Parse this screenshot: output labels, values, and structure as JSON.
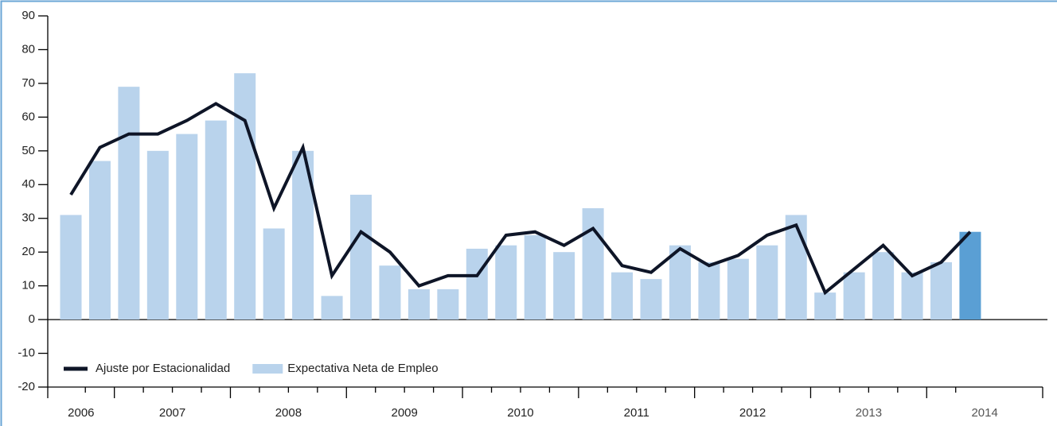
{
  "chart_data": {
    "type": "bar_line",
    "categories": [
      null,
      null,
      null,
      null,
      null,
      null,
      null,
      null,
      null,
      null,
      null,
      null,
      null,
      null,
      null,
      null,
      null,
      null,
      null,
      null,
      null,
      null,
      null,
      null,
      null,
      null,
      null,
      null,
      null,
      null,
      null,
      null
    ],
    "x_groups": [
      {
        "label": "2006",
        "count": 2
      },
      {
        "label": "2007",
        "count": 4
      },
      {
        "label": "2008",
        "count": 4
      },
      {
        "label": "2009",
        "count": 4
      },
      {
        "label": "2010",
        "count": 4
      },
      {
        "label": "2011",
        "count": 4
      },
      {
        "label": "2012",
        "count": 4
      },
      {
        "label": "2013",
        "count": 4
      },
      {
        "label": "2014",
        "count": 2
      }
    ],
    "series": [
      {
        "name": "Ajuste por Estacionalidad",
        "kind": "line",
        "color": "#0e1527",
        "values": [
          37,
          51,
          55,
          55,
          59,
          64,
          59,
          33,
          51,
          13,
          26,
          20,
          10,
          13,
          13,
          25,
          26,
          22,
          27,
          16,
          14,
          21,
          16,
          19,
          25,
          28,
          8,
          15,
          22,
          13,
          17,
          26
        ]
      },
      {
        "name": "Expectativa Neta de Empleo",
        "kind": "bar",
        "color": "#b9d3ec",
        "colors": [
          "#b9d3ec",
          "#b9d3ec",
          "#b9d3ec",
          "#b9d3ec",
          "#b9d3ec",
          "#b9d3ec",
          "#b9d3ec",
          "#b9d3ec",
          "#b9d3ec",
          "#b9d3ec",
          "#b9d3ec",
          "#b9d3ec",
          "#b9d3ec",
          "#b9d3ec",
          "#b9d3ec",
          "#b9d3ec",
          "#b9d3ec",
          "#b9d3ec",
          "#b9d3ec",
          "#b9d3ec",
          "#b9d3ec",
          "#b9d3ec",
          "#b9d3ec",
          "#b9d3ec",
          "#b9d3ec",
          "#b9d3ec",
          "#b9d3ec",
          "#b9d3ec",
          "#b9d3ec",
          "#b9d3ec",
          "#b9d3ec",
          "#5a9fd4"
        ],
        "values": [
          31,
          47,
          69,
          50,
          55,
          59,
          73,
          27,
          50,
          7,
          37,
          16,
          9,
          9,
          21,
          22,
          25,
          20,
          33,
          14,
          12,
          22,
          17,
          18,
          22,
          31,
          8,
          14,
          20,
          14,
          17,
          26
        ]
      }
    ],
    "ylim": [
      -20,
      90
    ],
    "yticks": [
      -20,
      -10,
      0,
      10,
      20,
      30,
      40,
      50,
      60,
      70,
      80,
      90
    ]
  }
}
